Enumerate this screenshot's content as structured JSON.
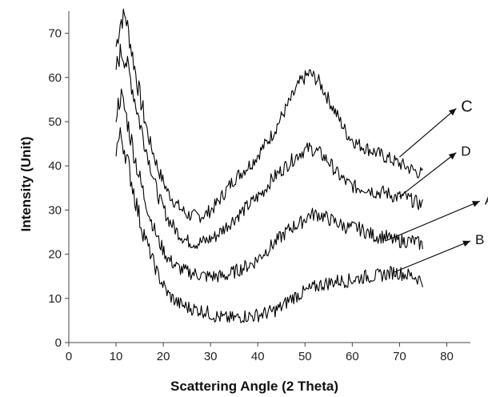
{
  "chart_data": {
    "type": "line",
    "title": "",
    "xlabel": "Scattering Angle (2 Theta)",
    "ylabel": "Intensity (Unit)",
    "xlim": [
      0,
      85
    ],
    "ylim": [
      0,
      75
    ],
    "xticks": [
      0,
      10,
      20,
      30,
      40,
      50,
      60,
      70,
      80
    ],
    "yticks": [
      0,
      10,
      20,
      30,
      40,
      50,
      60,
      70
    ],
    "grid": false,
    "legend": "arrow labels at right",
    "line_color": "#000000",
    "series": [
      {
        "name": "C",
        "x": [
          10,
          11,
          12,
          13,
          14,
          15,
          17,
          19,
          21,
          23,
          25,
          27,
          29,
          31,
          33,
          35,
          37,
          39,
          41,
          43,
          45,
          47,
          49,
          51,
          53,
          55,
          57,
          59,
          61,
          63,
          65,
          67,
          69,
          71,
          73,
          75
        ],
        "y": [
          67,
          73,
          74,
          68,
          62,
          56,
          46,
          39,
          34,
          31,
          29,
          28.5,
          29,
          31,
          34,
          37,
          39,
          41,
          44,
          47,
          51,
          55,
          59,
          61,
          59,
          55,
          51,
          47,
          45,
          44,
          43,
          42,
          41,
          40,
          39,
          38
        ]
      },
      {
        "name": "D",
        "x": [
          10,
          11,
          12,
          13,
          14,
          15,
          17,
          19,
          21,
          23,
          25,
          27,
          29,
          31,
          33,
          35,
          37,
          39,
          41,
          43,
          45,
          47,
          49,
          51,
          53,
          55,
          57,
          59,
          61,
          63,
          65,
          67,
          69,
          71,
          73,
          75
        ],
        "y": [
          62,
          66,
          64,
          60,
          55,
          50,
          41,
          33,
          28,
          25,
          23,
          22.5,
          23,
          24,
          26,
          28,
          30,
          32,
          34,
          37,
          39,
          41,
          43,
          44,
          43,
          41,
          38,
          36,
          35,
          35,
          34,
          34,
          33,
          33,
          32,
          31
        ]
      },
      {
        "name": "A",
        "x": [
          10,
          11,
          12,
          13,
          14,
          15,
          17,
          19,
          21,
          23,
          25,
          27,
          29,
          31,
          33,
          35,
          37,
          39,
          41,
          43,
          45,
          47,
          49,
          51,
          53,
          55,
          57,
          59,
          61,
          63,
          65,
          67,
          69,
          71,
          73,
          75
        ],
        "y": [
          52,
          56,
          52,
          47,
          42,
          37,
          29,
          23,
          19,
          17,
          16,
          15.5,
          15,
          15,
          15,
          16,
          17,
          18,
          20,
          22,
          24,
          26,
          27,
          29,
          29,
          28,
          27,
          26,
          26,
          25,
          24,
          24,
          23,
          23,
          23,
          22
        ]
      },
      {
        "name": "B",
        "x": [
          10,
          11,
          12,
          13,
          14,
          15,
          17,
          19,
          21,
          23,
          25,
          27,
          29,
          31,
          33,
          35,
          37,
          39,
          41,
          43,
          45,
          47,
          49,
          51,
          53,
          55,
          57,
          59,
          61,
          63,
          65,
          67,
          69,
          71,
          73,
          75
        ],
        "y": [
          44,
          47,
          43,
          38,
          33,
          28,
          21,
          15,
          11,
          9,
          8,
          7.5,
          7,
          6,
          5.5,
          5.5,
          6,
          6,
          6.5,
          7,
          8,
          10,
          11,
          12,
          13,
          13.5,
          14,
          14,
          14.5,
          15,
          15,
          15.5,
          16,
          15.5,
          15,
          14
        ]
      }
    ],
    "annotations": [
      {
        "text": "C",
        "from": [
          70,
          42
        ],
        "to": [
          82,
          53
        ]
      },
      {
        "text": "D",
        "from": [
          70,
          33
        ],
        "to": [
          82,
          43
        ]
      },
      {
        "text": "A",
        "from": [
          67,
          23
        ],
        "to": [
          87,
          32
        ]
      },
      {
        "text": "B",
        "from": [
          69,
          16
        ],
        "to": [
          85,
          23
        ]
      }
    ]
  }
}
